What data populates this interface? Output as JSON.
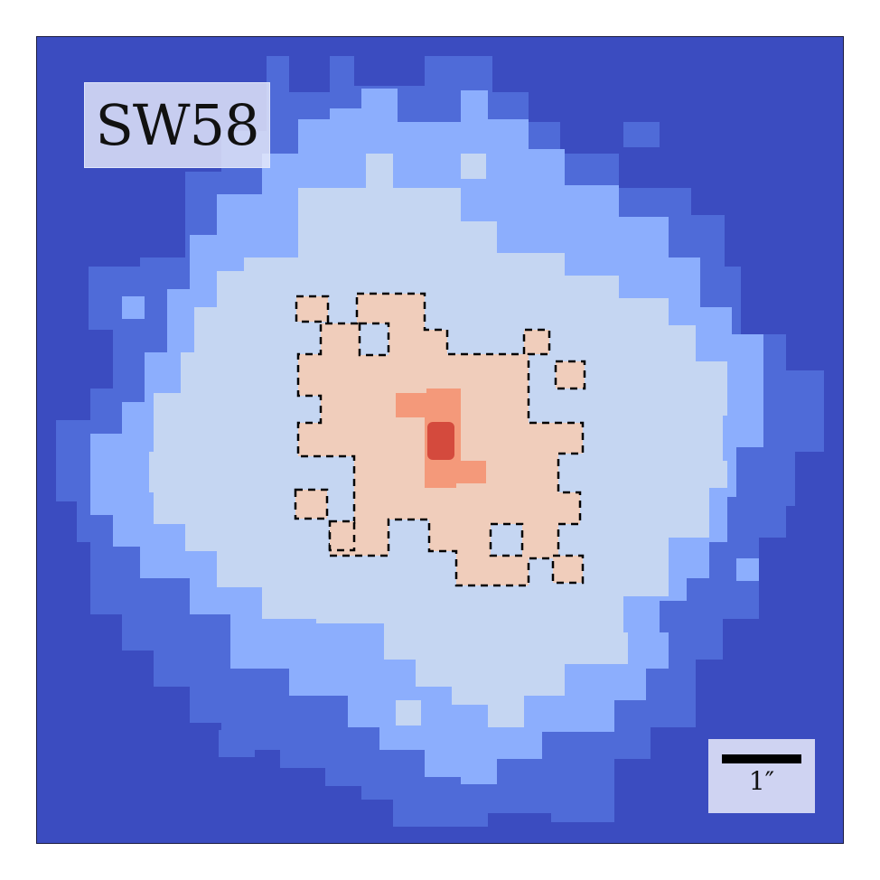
{
  "object": {
    "name": "SW58"
  },
  "scale_bar": {
    "label": "1″"
  },
  "colors": {
    "background": "#3b4cc0",
    "level_1": "#4f6bd8",
    "level_2": "#8caefd",
    "level_3": "#c5d6f2",
    "level_4": "#f0cdbb",
    "level_5": "#f4997a",
    "level_6": "#d44a3d"
  }
}
